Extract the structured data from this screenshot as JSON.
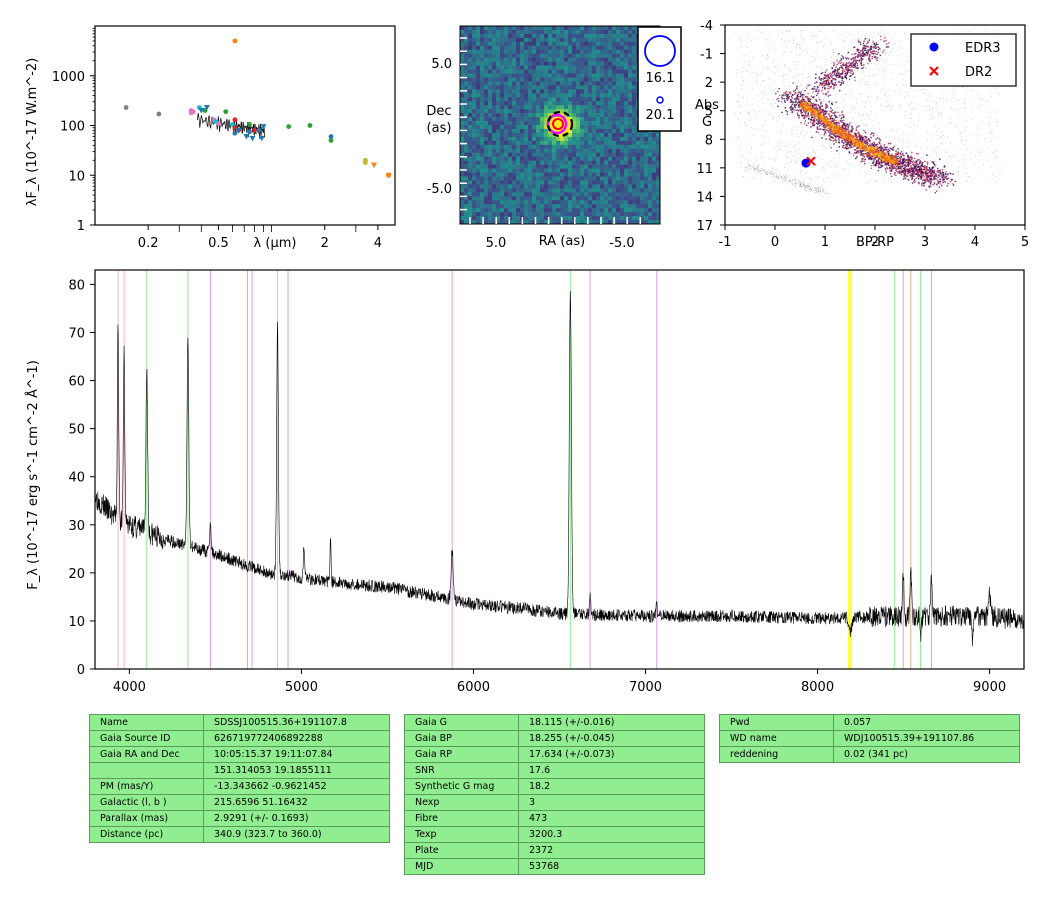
{
  "chart_data": [
    {
      "type": "scatter",
      "panel": "sed",
      "ylabel": "λF_λ (10^-17 W.m^-2)",
      "xlabel": "λ (μm)",
      "log_x": true,
      "log_y": true,
      "xlim": [
        0.1,
        5.0
      ],
      "ylim": [
        1,
        10000
      ],
      "xticks": [
        "0.2",
        "0.5",
        "2",
        "4"
      ],
      "yticks": [
        "1",
        "10",
        "100",
        "1000"
      ],
      "series": [
        {
          "color": "#7f7f7f",
          "points": [
            [
              0.15,
              230
            ],
            [
              0.23,
              170
            ]
          ]
        },
        {
          "color": "#e377c2",
          "points": [
            [
              0.35,
              200
            ],
            [
              0.35,
              180
            ],
            [
              0.36,
              190
            ],
            [
              0.47,
              130
            ],
            [
              0.5,
              110
            ]
          ]
        },
        {
          "color": "#17becf",
          "points": [
            [
              0.39,
              230
            ],
            [
              0.48,
              120
            ],
            [
              0.6,
              105
            ]
          ]
        },
        {
          "color": "#2ca02c",
          "points": [
            [
              0.42,
              200
            ],
            [
              0.55,
              190
            ],
            [
              0.75,
              105
            ],
            [
              1.25,
              95
            ],
            [
              1.65,
              100
            ],
            [
              2.17,
              50
            ]
          ]
        },
        {
          "color": "#1f77b4",
          "points": [
            [
              0.62,
              70
            ],
            [
              0.75,
              75
            ],
            [
              0.85,
              80
            ],
            [
              2.17,
              60
            ]
          ]
        },
        {
          "color": "#d62728",
          "points": [
            [
              0.62,
              130
            ],
            [
              0.62,
              90
            ],
            [
              0.65,
              80
            ],
            [
              0.8,
              80
            ]
          ]
        },
        {
          "color": "#ff7f0e",
          "points": [
            [
              0.62,
              5000
            ]
          ]
        },
        {
          "color": "#bcbd22",
          "points": [
            [
              3.4,
              20
            ],
            [
              3.4,
              18
            ]
          ]
        },
        {
          "color": "#ff7f0e",
          "points": [
            [
              4.6,
              10
            ],
            [
              4.6,
              10
            ]
          ]
        }
      ],
      "upper_limits": [
        {
          "color": "#1f77b4",
          "points": [
            [
              0.4,
              200
            ],
            [
              0.43,
              230
            ],
            [
              0.65,
              80
            ],
            [
              0.72,
              60
            ],
            [
              0.78,
              55
            ],
            [
              0.88,
              55
            ],
            [
              0.9,
              95
            ]
          ]
        },
        {
          "color": "#ff7f0e",
          "points": [
            [
              3.8,
              16
            ],
            [
              4.6,
              10
            ]
          ]
        }
      ]
    },
    {
      "type": "heatmap",
      "panel": "image",
      "xlabel": "RA (as)",
      "ylabel": "Dec\n(as)",
      "xticks": [
        "5.0",
        "-5.0"
      ],
      "yticks": [
        "5.0",
        "-5.0"
      ],
      "legend": [
        {
          "label": "16.1",
          "color": "#0000ff"
        },
        {
          "label": "20.1",
          "color": "#0000ff"
        }
      ]
    },
    {
      "type": "scatter",
      "panel": "hr",
      "xlabel": "BP-RP",
      "ylabel": "Abs\nG",
      "xlim": [
        -1,
        5
      ],
      "ylim": [
        17,
        -4
      ],
      "xticks": [
        "-1",
        "0",
        "1",
        "2",
        "3",
        "4",
        "5"
      ],
      "yticks": [
        "-4",
        "-1",
        "2",
        "5",
        "8",
        "11",
        "14",
        "17"
      ],
      "series": [
        {
          "name": "EDR3",
          "color": "#0000ff",
          "marker": "circle",
          "points": [
            [
              0.62,
              10.5
            ]
          ]
        },
        {
          "name": "DR2",
          "color": "#ff0000",
          "marker": "x",
          "points": [
            [
              0.72,
              10.3
            ]
          ]
        }
      ],
      "legend_position": "top-right"
    },
    {
      "type": "line",
      "panel": "spectrum",
      "ylabel": "F_λ (10^-17 erg s^-1 cm^-2 Å^-1)",
      "xlim": [
        3800,
        9200
      ],
      "ylim": [
        0,
        83
      ],
      "xticks": [
        "4000",
        "5000",
        "6000",
        "7000",
        "8000",
        "9000"
      ],
      "yticks": [
        "0",
        "10",
        "20",
        "30",
        "40",
        "50",
        "60",
        "70",
        "80"
      ],
      "color": "#000000",
      "continuum": [
        [
          3800,
          36
        ],
        [
          3900,
          32
        ],
        [
          4000,
          30
        ],
        [
          4200,
          27
        ],
        [
          4500,
          24
        ],
        [
          4800,
          20
        ],
        [
          5000,
          19
        ],
        [
          5200,
          18
        ],
        [
          5500,
          17
        ],
        [
          5800,
          15
        ],
        [
          6000,
          13.5
        ],
        [
          6300,
          12.5
        ],
        [
          6500,
          11.5
        ],
        [
          7000,
          11
        ],
        [
          7500,
          11
        ],
        [
          8000,
          10.5
        ],
        [
          8500,
          11
        ],
        [
          9000,
          11
        ],
        [
          9200,
          10
        ]
      ],
      "emission_lines": [
        {
          "x": 3934,
          "peak": 72,
          "w": 4
        },
        {
          "x": 3969,
          "peak": 66,
          "w": 4
        },
        {
          "x": 4101,
          "peak": 62,
          "w": 5
        },
        {
          "x": 4340,
          "peak": 70,
          "w": 5
        },
        {
          "x": 4471,
          "peak": 31,
          "w": 4
        },
        {
          "x": 4861,
          "peak": 72,
          "w": 5
        },
        {
          "x": 5015,
          "peak": 26,
          "w": 4
        },
        {
          "x": 5169,
          "peak": 28,
          "w": 3
        },
        {
          "x": 5876,
          "peak": 25,
          "w": 6
        },
        {
          "x": 6563,
          "peak": 78,
          "w": 6
        },
        {
          "x": 6678,
          "peak": 15,
          "w": 4
        },
        {
          "x": 7065,
          "peak": 13.5,
          "w": 4
        },
        {
          "x": 8498,
          "peak": 20,
          "w": 4
        },
        {
          "x": 8542,
          "peak": 21,
          "w": 4
        },
        {
          "x": 8662,
          "peak": 19,
          "w": 4
        },
        {
          "x": 9000,
          "peak": 16,
          "w": 6
        }
      ],
      "absorption_dips": [
        {
          "x": 8190,
          "depth": 3,
          "w": 8
        },
        {
          "x": 8600,
          "depth": 4,
          "w": 4
        },
        {
          "x": 8900,
          "depth": 5,
          "w": 4
        }
      ],
      "vlines": [
        {
          "x": 3934,
          "color": "#ffb6c1"
        },
        {
          "x": 3969,
          "color": "#ffb6c1"
        },
        {
          "x": 4101,
          "color": "#90ee90"
        },
        {
          "x": 4340,
          "color": "#90ee90"
        },
        {
          "x": 4471,
          "color": "#dda0dd"
        },
        {
          "x": 4686,
          "color": "#dda0dd"
        },
        {
          "x": 4713,
          "color": "#dda0dd"
        },
        {
          "x": 4861,
          "color": "#90ee90"
        },
        {
          "x": 4922,
          "color": "#dda0dd"
        },
        {
          "x": 5876,
          "color": "#dda0dd"
        },
        {
          "x": 6563,
          "color": "#90ee90"
        },
        {
          "x": 6678,
          "color": "#dda0dd"
        },
        {
          "x": 7065,
          "color": "#dda0dd"
        },
        {
          "x": 8183,
          "color": "#ffff00"
        },
        {
          "x": 8195,
          "color": "#ffff00"
        },
        {
          "x": 8446,
          "color": "#90ee90"
        },
        {
          "x": 8498,
          "color": "#d2b48c"
        },
        {
          "x": 8542,
          "color": "#d2b48c"
        },
        {
          "x": 8598,
          "color": "#90ee90"
        },
        {
          "x": 8662,
          "color": "#d2b48c"
        }
      ]
    }
  ],
  "tables": {
    "table1": [
      [
        "Name",
        "SDSSJ100515.36+191107.8"
      ],
      [
        "Gaia Source ID",
        "626719772406892288"
      ],
      [
        "Gaia RA and Dec",
        "10:05:15.37    19:11:07.84"
      ],
      [
        "",
        "151.314053    19.1855111"
      ],
      [
        "PM (mas/Y)",
        "-13.343662    -0.9621452"
      ],
      [
        "Galactic (l, b )",
        "215.6596    51.16432"
      ],
      [
        "Parallax (mas)",
        "2.9291 (+/- 0.1693)"
      ],
      [
        "Distance (pc)",
        "340.9 (323.7 to 360.0)"
      ]
    ],
    "table2": [
      [
        "Gaia G",
        "18.115 (+/-0.016)"
      ],
      [
        "Gaia BP",
        "18.255 (+/-0.045)"
      ],
      [
        "Gaia RP",
        "17.634 (+/-0.073)"
      ],
      [
        "SNR",
        "17.6"
      ],
      [
        "Synthetic G mag",
        "18.2"
      ],
      [
        "Nexp",
        "3"
      ],
      [
        "Fibre",
        "473"
      ],
      [
        "Texp",
        "3200.3"
      ],
      [
        "Plate",
        "2372"
      ],
      [
        "MJD",
        "53768"
      ]
    ],
    "table3": [
      [
        "Pwd",
        "0.057"
      ],
      [
        "WD name",
        "WDJ100515.39+191107.86"
      ],
      [
        "reddening",
        "0.02 (341 pc)"
      ]
    ]
  }
}
